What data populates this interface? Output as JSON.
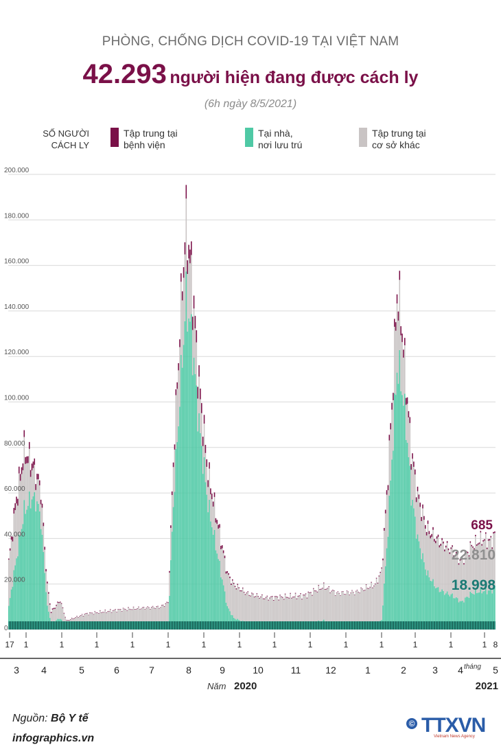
{
  "supertitle": "PHÒNG, CHỐNG DỊCH COVID-19 TẠI VIỆT NAM",
  "headline_number": "42.293",
  "headline_text": "người hiện đang được cách ly",
  "subtitle": "(6h ngày 8/5/2021)",
  "y_axis_label_line1": "SỐ NGƯỜI",
  "y_axis_label_line2": "CÁCH LY",
  "legend": [
    {
      "line1": "Tập trung tại",
      "line2": "bệnh viện",
      "color": "#7a1048"
    },
    {
      "line1": "Tại nhà,",
      "line2": "nơi lưu trú",
      "color": "#4fc9a5"
    },
    {
      "line1": "Tập trung tại",
      "line2": "cơ sở khác",
      "color": "#c9c4c4"
    }
  ],
  "annotations": {
    "hospital_latest": "685",
    "other_latest": "22.810",
    "home_latest": "18.998",
    "thang_label": "tháng"
  },
  "year_labels": {
    "nam_label": "Năm",
    "year_2020": "2020",
    "year_2021": "2021"
  },
  "source_label": "Nguồn:",
  "source_value": "Bộ Y tế",
  "site": "infographics.vn",
  "logo_text": "TTXVN",
  "logo_subtext": "Vietnam News Agency",
  "colors": {
    "hospital": "#7a1048",
    "home": "#4fc9a5",
    "other": "#c9c4c4",
    "title": "#7a1048",
    "home_label": "#1a7a74"
  },
  "chart_data": {
    "type": "bar",
    "stacked": true,
    "title": "Số người cách ly",
    "ylim": [
      0,
      200000
    ],
    "yticks": [
      0,
      20000,
      40000,
      60000,
      80000,
      100000,
      120000,
      140000,
      160000,
      180000,
      200000
    ],
    "ytick_labels": [
      "0",
      "20.000",
      "40.000",
      "60.000",
      "80.000",
      "100.000",
      "120.000",
      "140.000",
      "160.000",
      "180.000",
      "200.000"
    ],
    "day_ticks": [
      "17",
      "1",
      "1",
      "1",
      "1",
      "1",
      "1",
      "1",
      "1",
      "1",
      "1",
      "1",
      "1",
      "1",
      "1",
      "1",
      "1",
      "8"
    ],
    "months": [
      "3",
      "4",
      "5",
      "6",
      "7",
      "8",
      "9",
      "10",
      "11",
      "12",
      "1",
      "2",
      "3",
      "4",
      "5"
    ],
    "keypoints": [
      [
        0,
        30000,
        10000,
        500
      ],
      [
        5,
        55000,
        28000,
        3000
      ],
      [
        12,
        80000,
        52000,
        3000
      ],
      [
        18,
        74000,
        58000,
        3000
      ],
      [
        22,
        68000,
        56000,
        2500
      ],
      [
        25,
        62000,
        48000,
        2000
      ],
      [
        30,
        20000,
        10000,
        800
      ],
      [
        33,
        8000,
        3000,
        500
      ],
      [
        40,
        13000,
        5000,
        400
      ],
      [
        45,
        4000,
        1000,
        200
      ],
      [
        60,
        7000,
        1500,
        200
      ],
      [
        90,
        9000,
        1500,
        200
      ],
      [
        118,
        10000,
        1500,
        200
      ],
      [
        124,
        12000,
        3000,
        300
      ],
      [
        128,
        75000,
        55000,
        2000
      ],
      [
        135,
        155000,
        120000,
        4000
      ],
      [
        138,
        180000,
        145000,
        6000
      ],
      [
        142,
        160000,
        130000,
        6000
      ],
      [
        148,
        110000,
        90000,
        5000
      ],
      [
        155,
        70000,
        55000,
        3000
      ],
      [
        160,
        55000,
        40000,
        2000
      ],
      [
        165,
        40000,
        25000,
        1500
      ],
      [
        170,
        25000,
        10000,
        800
      ],
      [
        175,
        20000,
        5000,
        500
      ],
      [
        185,
        16000,
        3000,
        300
      ],
      [
        200,
        14000,
        2500,
        300
      ],
      [
        230,
        15000,
        2500,
        300
      ],
      [
        245,
        19000,
        4000,
        300
      ],
      [
        255,
        16000,
        2000,
        200
      ],
      [
        270,
        16500,
        1500,
        200
      ],
      [
        285,
        20000,
        2500,
        300
      ],
      [
        290,
        26000,
        4000,
        400
      ],
      [
        294,
        60000,
        35000,
        2000
      ],
      [
        298,
        100000,
        75000,
        3000
      ],
      [
        302,
        150000,
        115000,
        4000
      ],
      [
        305,
        140000,
        110000,
        4000
      ],
      [
        309,
        110000,
        90000,
        3000
      ],
      [
        313,
        80000,
        60000,
        2500
      ],
      [
        318,
        60000,
        40000,
        2000
      ],
      [
        325,
        45000,
        25000,
        1500
      ],
      [
        333,
        40000,
        18000,
        1000
      ],
      [
        340,
        37000,
        16000,
        800
      ],
      [
        345,
        35000,
        15000,
        700
      ],
      [
        352,
        30000,
        12000,
        600
      ],
      [
        360,
        37000,
        16000,
        600
      ],
      [
        368,
        40000,
        17000,
        650
      ],
      [
        375,
        39000,
        17000,
        650
      ],
      [
        378,
        42293,
        18998,
        685
      ]
    ],
    "latest": {
      "total": 42293,
      "hospital": 685,
      "home": 18998,
      "other": 22810
    }
  }
}
